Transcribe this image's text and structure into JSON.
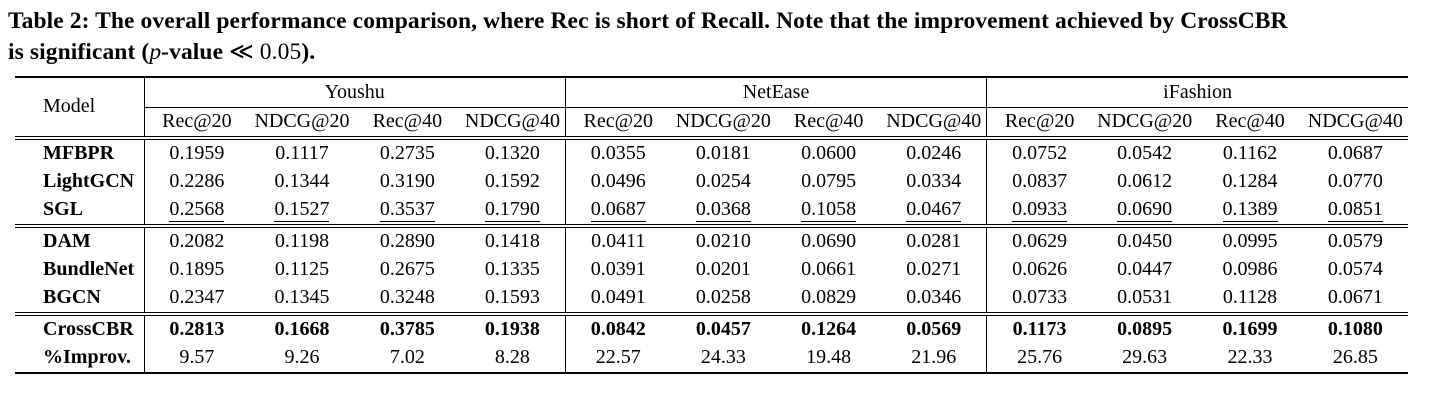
{
  "caption": {
    "line1": "Table 2: The overall performance comparison, where Rec is short of Recall. Note that the improvement achieved by CrossCBR",
    "line2_prefix": "is significant (",
    "line2_pvar": "p",
    "line2_mid": "-value ",
    "line2_math": "≪ 0.05",
    "line2_close": ")."
  },
  "table": {
    "model_header": "Model",
    "groups": [
      {
        "name": "Youshu",
        "metrics": [
          "Rec@20",
          "NDCG@20",
          "Rec@40",
          "NDCG@40"
        ]
      },
      {
        "name": "NetEase",
        "metrics": [
          "Rec@20",
          "NDCG@20",
          "Rec@40",
          "NDCG@40"
        ]
      },
      {
        "name": "iFashion",
        "metrics": [
          "Rec@20",
          "NDCG@20",
          "Rec@40",
          "NDCG@40"
        ]
      }
    ],
    "sections": [
      {
        "rows": [
          {
            "model": "MFBPR",
            "style": "normal",
            "values": [
              "0.1959",
              "0.1117",
              "0.2735",
              "0.1320",
              "0.0355",
              "0.0181",
              "0.0600",
              "0.0246",
              "0.0752",
              "0.0542",
              "0.1162",
              "0.0687"
            ]
          },
          {
            "model": "LightGCN",
            "style": "normal",
            "values": [
              "0.2286",
              "0.1344",
              "0.3190",
              "0.1592",
              "0.0496",
              "0.0254",
              "0.0795",
              "0.0334",
              "0.0837",
              "0.0612",
              "0.1284",
              "0.0770"
            ]
          },
          {
            "model": "SGL",
            "style": "underline",
            "values": [
              "0.2568",
              "0.1527",
              "0.3537",
              "0.1790",
              "0.0687",
              "0.0368",
              "0.1058",
              "0.0467",
              "0.0933",
              "0.0690",
              "0.1389",
              "0.0851"
            ]
          }
        ]
      },
      {
        "rows": [
          {
            "model": "DAM",
            "style": "normal",
            "values": [
              "0.2082",
              "0.1198",
              "0.2890",
              "0.1418",
              "0.0411",
              "0.0210",
              "0.0690",
              "0.0281",
              "0.0629",
              "0.0450",
              "0.0995",
              "0.0579"
            ]
          },
          {
            "model": "BundleNet",
            "style": "normal",
            "values": [
              "0.1895",
              "0.1125",
              "0.2675",
              "0.1335",
              "0.0391",
              "0.0201",
              "0.0661",
              "0.0271",
              "0.0626",
              "0.0447",
              "0.0986",
              "0.0574"
            ]
          },
          {
            "model": "BGCN",
            "style": "normal",
            "values": [
              "0.2347",
              "0.1345",
              "0.3248",
              "0.1593",
              "0.0491",
              "0.0258",
              "0.0829",
              "0.0346",
              "0.0733",
              "0.0531",
              "0.1128",
              "0.0671"
            ]
          }
        ]
      },
      {
        "rows": [
          {
            "model": "CrossCBR",
            "style": "bold",
            "values": [
              "0.2813",
              "0.1668",
              "0.3785",
              "0.1938",
              "0.0842",
              "0.0457",
              "0.1264",
              "0.0569",
              "0.1173",
              "0.0895",
              "0.1699",
              "0.1080"
            ]
          },
          {
            "model": "%Improv.",
            "style": "normal",
            "values": [
              "9.57",
              "9.26",
              "7.02",
              "8.28",
              "22.57",
              "24.33",
              "19.48",
              "21.96",
              "25.76",
              "29.63",
              "22.33",
              "26.85"
            ]
          }
        ]
      }
    ]
  }
}
